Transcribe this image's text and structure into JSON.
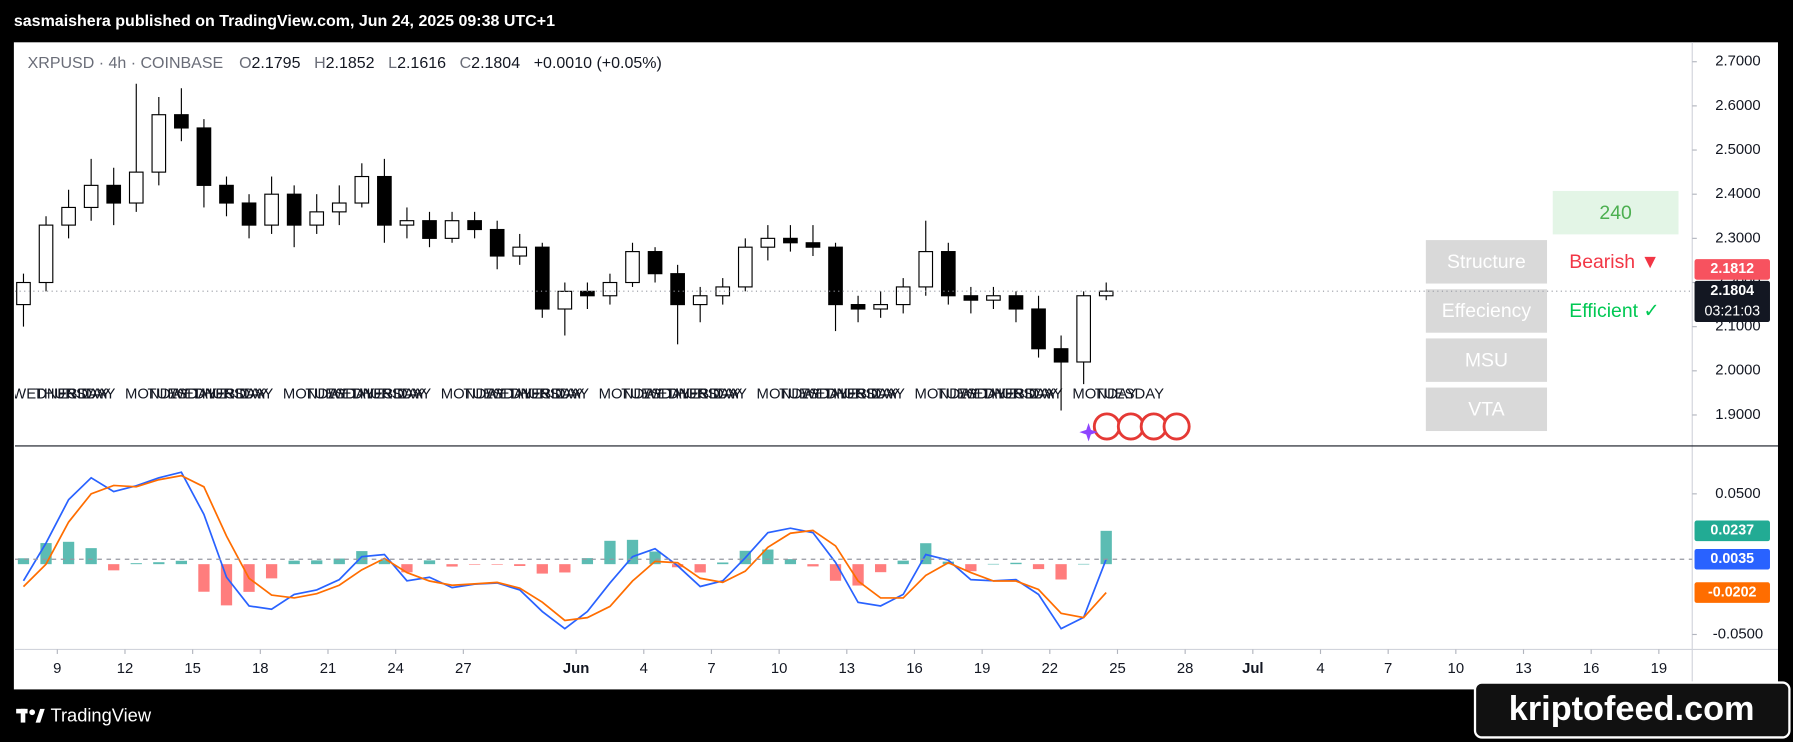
{
  "header": {
    "publisher": "sasmaishera published on TradingView.com, Jun 24, 2025 09:38 UTC+1"
  },
  "chart_data": [
    {
      "type": "candlestick",
      "title": "XRPUSD · 4h · COINBASE",
      "ohlc": [
        {
          "name": "O",
          "value": 2.1795
        },
        {
          "name": "H",
          "value": 2.1852
        },
        {
          "name": "L",
          "value": 2.1616
        },
        {
          "name": "C",
          "value": 2.1804
        }
      ],
      "change": "+0.0010 (+0.05%)",
      "x": [
        7.5,
        8.5,
        9.5,
        10.5,
        11.5,
        12.5,
        13.5,
        14.5,
        15.5,
        16.5,
        17.5,
        18.5,
        19.5,
        20.5,
        21.5,
        22.5,
        23.5,
        24.5,
        25.5,
        26.5,
        27.5,
        28.5,
        29.5,
        30.5,
        31.5,
        32.5,
        33.5,
        34.5,
        35.5,
        36.5,
        37.5,
        38.5,
        39.5,
        40.5,
        41.5,
        42.5,
        43.5,
        44.5,
        45.5,
        46.5,
        47.5,
        48.5,
        49.5,
        50.5,
        51.5,
        52.5,
        53.5,
        54.5,
        55.5
      ],
      "open": [
        2.15,
        2.2,
        2.33,
        2.37,
        2.42,
        2.38,
        2.45,
        2.58,
        2.55,
        2.42,
        2.38,
        2.33,
        2.4,
        2.33,
        2.36,
        2.38,
        2.44,
        2.33,
        2.34,
        2.3,
        2.34,
        2.32,
        2.26,
        2.28,
        2.14,
        2.18,
        2.17,
        2.2,
        2.27,
        2.22,
        2.15,
        2.17,
        2.19,
        2.28,
        2.3,
        2.29,
        2.28,
        2.15,
        2.14,
        2.15,
        2.19,
        2.27,
        2.17,
        2.16,
        2.17,
        2.14,
        2.05,
        2.02,
        2.17
      ],
      "high": [
        2.22,
        2.35,
        2.41,
        2.48,
        2.46,
        2.65,
        2.62,
        2.64,
        2.57,
        2.44,
        2.4,
        2.44,
        2.42,
        2.4,
        2.42,
        2.47,
        2.48,
        2.37,
        2.36,
        2.36,
        2.36,
        2.34,
        2.31,
        2.29,
        2.2,
        2.2,
        2.22,
        2.29,
        2.28,
        2.24,
        2.19,
        2.21,
        2.3,
        2.33,
        2.33,
        2.33,
        2.29,
        2.17,
        2.18,
        2.21,
        2.34,
        2.29,
        2.19,
        2.19,
        2.18,
        2.17,
        2.08,
        2.18,
        2.2
      ],
      "low": [
        2.1,
        2.18,
        2.3,
        2.34,
        2.33,
        2.36,
        2.42,
        2.52,
        2.37,
        2.35,
        2.3,
        2.31,
        2.28,
        2.31,
        2.33,
        2.37,
        2.29,
        2.3,
        2.28,
        2.29,
        2.3,
        2.23,
        2.24,
        2.12,
        2.08,
        2.14,
        2.15,
        2.19,
        2.2,
        2.06,
        2.11,
        2.15,
        2.18,
        2.25,
        2.27,
        2.26,
        2.09,
        2.11,
        2.12,
        2.13,
        2.17,
        2.15,
        2.13,
        2.14,
        2.11,
        2.03,
        1.91,
        1.97,
        2.16
      ],
      "close": [
        2.2,
        2.33,
        2.37,
        2.42,
        2.38,
        2.45,
        2.58,
        2.55,
        2.42,
        2.38,
        2.33,
        2.4,
        2.33,
        2.36,
        2.38,
        2.44,
        2.33,
        2.34,
        2.3,
        2.34,
        2.32,
        2.26,
        2.28,
        2.14,
        2.18,
        2.17,
        2.2,
        2.27,
        2.22,
        2.15,
        2.17,
        2.19,
        2.28,
        2.3,
        2.29,
        2.28,
        2.15,
        2.14,
        2.15,
        2.19,
        2.27,
        2.17,
        2.16,
        2.17,
        2.14,
        2.05,
        2.02,
        2.17,
        2.1804
      ],
      "up_color": "#ffffff",
      "down_color": "#000000",
      "wick_color": "#000000",
      "xlim": [
        7.125,
        81.48
      ],
      "ylim": [
        1.83,
        2.744
      ],
      "yticks": [
        {
          "value": 1.9,
          "label": "1.9000"
        },
        {
          "value": 2,
          "label": "2.0000"
        },
        {
          "value": 2.1,
          "label": "2.1000"
        },
        {
          "value": 2.2,
          "label": "2.2000"
        },
        {
          "value": 2.3,
          "label": "2.3000"
        },
        {
          "value": 2.4,
          "label": "2.4000"
        },
        {
          "value": 2.5,
          "label": "2.5000"
        },
        {
          "value": 2.6,
          "label": "2.6000"
        },
        {
          "value": 2.7,
          "label": "2.7000"
        }
      ],
      "price_tags": [
        {
          "value": 2.1812,
          "label": "2.1812",
          "color": "#f7525f"
        },
        {
          "value": 2.1804,
          "label": "2.1804",
          "color": "#131722"
        }
      ],
      "countdown": "03:21:03",
      "session_labels": [
        {
          "value": 7,
          "label": "WEDNESDAY"
        },
        {
          "value": 8,
          "label": "THURSDAY"
        },
        {
          "value": 9,
          "label": "FRIDAY"
        },
        {
          "value": 12,
          "label": "MONDAY"
        },
        {
          "value": 13,
          "label": "TUESDAY"
        },
        {
          "value": 14,
          "label": "WEDNESDAY"
        },
        {
          "value": 15,
          "label": "THURSDAY"
        },
        {
          "value": 16,
          "label": "FRIDAY"
        },
        {
          "value": 19,
          "label": "MONDAY"
        },
        {
          "value": 20,
          "label": "TUESDAY"
        },
        {
          "value": 21,
          "label": "WEDNESDAY"
        },
        {
          "value": 22,
          "label": "THURSDAY"
        },
        {
          "value": 23,
          "label": "FRIDAY"
        },
        {
          "value": 26,
          "label": "MONDAY"
        },
        {
          "value": 27,
          "label": "TUESDAY"
        },
        {
          "value": 28,
          "label": "WEDNESDAY"
        },
        {
          "value": 29,
          "label": "THURSDAY"
        },
        {
          "value": 30,
          "label": "FRIDAY"
        },
        {
          "value": 33,
          "label": "MONDAY"
        },
        {
          "value": 34,
          "label": "TUESDAY"
        },
        {
          "value": 35,
          "label": "WEDNESDAY"
        },
        {
          "value": 36,
          "label": "THURSDAY"
        },
        {
          "value": 37,
          "label": "FRIDAY"
        },
        {
          "value": 40,
          "label": "MONDAY"
        },
        {
          "value": 41,
          "label": "TUESDAY"
        },
        {
          "value": 42,
          "label": "WEDNESDAY"
        },
        {
          "value": 43,
          "label": "THURSDAY"
        },
        {
          "value": 44,
          "label": "FRIDAY"
        },
        {
          "value": 47,
          "label": "MONDAY"
        },
        {
          "value": 48,
          "label": "TUESDAY"
        },
        {
          "value": 49,
          "label": "WEDNESDAY"
        },
        {
          "value": 50,
          "label": "THURSDAY"
        },
        {
          "value": 51,
          "label": "FRIDAY"
        },
        {
          "value": 54,
          "label": "MONDAY"
        },
        {
          "value": 55,
          "label": "TUESDAY"
        }
      ]
    },
    {
      "type": "macd",
      "x": [
        7.5,
        8.5,
        9.5,
        10.5,
        11.5,
        12.5,
        13.5,
        14.5,
        15.5,
        16.5,
        17.5,
        18.5,
        19.5,
        20.5,
        21.5,
        22.5,
        23.5,
        24.5,
        25.5,
        26.5,
        27.5,
        28.5,
        29.5,
        30.5,
        31.5,
        32.5,
        33.5,
        34.5,
        35.5,
        36.5,
        37.5,
        38.5,
        39.5,
        40.5,
        41.5,
        42.5,
        43.5,
        44.5,
        45.5,
        46.5,
        47.5,
        48.5,
        49.5,
        50.5,
        51.5,
        52.5,
        53.5,
        54.5,
        55.5
      ],
      "series": [
        {
          "type": "bar",
          "color": "#26a69a",
          "negative_color": "#ff5252",
          "values": [
            0.0042,
            0.015,
            0.0159,
            0.0114,
            -0.0044,
            0.0007,
            0.0014,
            0.0024,
            -0.0196,
            -0.0293,
            -0.0197,
            -0.0101,
            0.0025,
            0.0027,
            0.004,
            0.0093,
            0.0029,
            -0.0058,
            0.0027,
            -0.0017,
            -0.0002,
            -0.0004,
            -0.0013,
            -0.0067,
            -0.0059,
            0.0043,
            0.0166,
            0.0173,
            0.009,
            -0.0022,
            -0.0059,
            0.0012,
            0.0095,
            0.0104,
            0.0036,
            -0.0016,
            -0.0118,
            -0.0152,
            -0.0057,
            0.0025,
            0.0149,
            0.0018,
            -0.005,
            0.0002,
            0.001,
            -0.0035,
            -0.0109,
            0.0002,
            0.0237
          ]
        },
        {
          "type": "line",
          "color": "#2962ff",
          "values": [
            -0.0118,
            0.015,
            0.0459,
            0.0614,
            0.0516,
            0.0557,
            0.0614,
            0.0654,
            0.0354,
            -0.0093,
            -0.0297,
            -0.0321,
            -0.0215,
            -0.0183,
            -0.011,
            0.0053,
            0.0069,
            -0.0118,
            -0.0093,
            -0.0167,
            -0.0142,
            -0.0134,
            -0.0183,
            -0.0337,
            -0.0459,
            -0.0337,
            -0.0134,
            0.0053,
            0.011,
            -0.0012,
            -0.0159,
            -0.0118,
            0.0045,
            0.0224,
            0.0256,
            0.0224,
            0.0012,
            -0.0272,
            -0.0297,
            -0.0215,
            0.0069,
            0.0028,
            -0.011,
            -0.0118,
            -0.011,
            -0.0215,
            -0.0459,
            -0.0378,
            0.0035
          ]
        },
        {
          "type": "line",
          "color": "#ff6d00",
          "values": [
            -0.016,
            0.0,
            0.03,
            0.05,
            0.056,
            0.055,
            0.06,
            0.063,
            0.055,
            0.02,
            -0.01,
            -0.022,
            -0.024,
            -0.021,
            -0.015,
            -0.004,
            0.004,
            -0.006,
            -0.012,
            -0.015,
            -0.014,
            -0.013,
            -0.017,
            -0.027,
            -0.04,
            -0.038,
            -0.03,
            -0.012,
            0.002,
            0.001,
            -0.01,
            -0.013,
            -0.005,
            0.012,
            0.022,
            0.024,
            0.013,
            -0.012,
            -0.024,
            -0.024,
            -0.008,
            0.001,
            -0.006,
            -0.012,
            -0.012,
            -0.018,
            -0.035,
            -0.038,
            -0.0202
          ]
        }
      ],
      "xlim": [
        7.125,
        81.48
      ],
      "xticks": [
        9,
        12,
        15,
        18,
        21,
        24,
        27,
        {
          "value": 32,
          "label": "Jun"
        },
        {
          "value": 35,
          "label": "4"
        },
        {
          "value": 38,
          "label": "7"
        },
        {
          "value": 41,
          "label": "10"
        },
        {
          "value": 44,
          "label": "13"
        },
        {
          "value": 47,
          "label": "16"
        },
        {
          "value": 50,
          "label": "19"
        },
        {
          "value": 53,
          "label": "22"
        },
        {
          "value": 56,
          "label": "25"
        },
        {
          "value": 59,
          "label": "28"
        },
        {
          "value": 62,
          "label": "Jul"
        },
        {
          "value": 65,
          "label": "4"
        },
        {
          "value": 68,
          "label": "7"
        },
        {
          "value": 71,
          "label": "10"
        },
        {
          "value": 74,
          "label": "13"
        },
        {
          "value": 77,
          "label": "16"
        },
        {
          "value": 80,
          "label": "19"
        }
      ],
      "ylim": [
        -0.0606,
        0.0841
      ],
      "yticks": [
        {
          "value": -0.05,
          "label": "-0.0500"
        },
        {
          "value": 0.05,
          "label": "0.0500"
        }
      ],
      "tags": [
        {
          "value": 0.0237,
          "label": "0.0237",
          "color": "#22ab94"
        },
        {
          "value": 0.0035,
          "label": "0.0035",
          "color": "#2962ff"
        },
        {
          "value": -0.0202,
          "label": "-0.0202",
          "color": "#ff6d00"
        }
      ]
    }
  ],
  "indicator_table": {
    "timeframe": "240",
    "rows": [
      {
        "label": "Structure",
        "status": "Bearish ▼",
        "color": "#f23645"
      },
      {
        "label": "Effeciency",
        "status": "Efficient ✓",
        "color": "#00c853"
      },
      {
        "label": "MSU"
      },
      {
        "label": "VTA"
      }
    ]
  },
  "footer": {
    "brand": "TradingView",
    "watermark": "kriptofeed.com"
  }
}
